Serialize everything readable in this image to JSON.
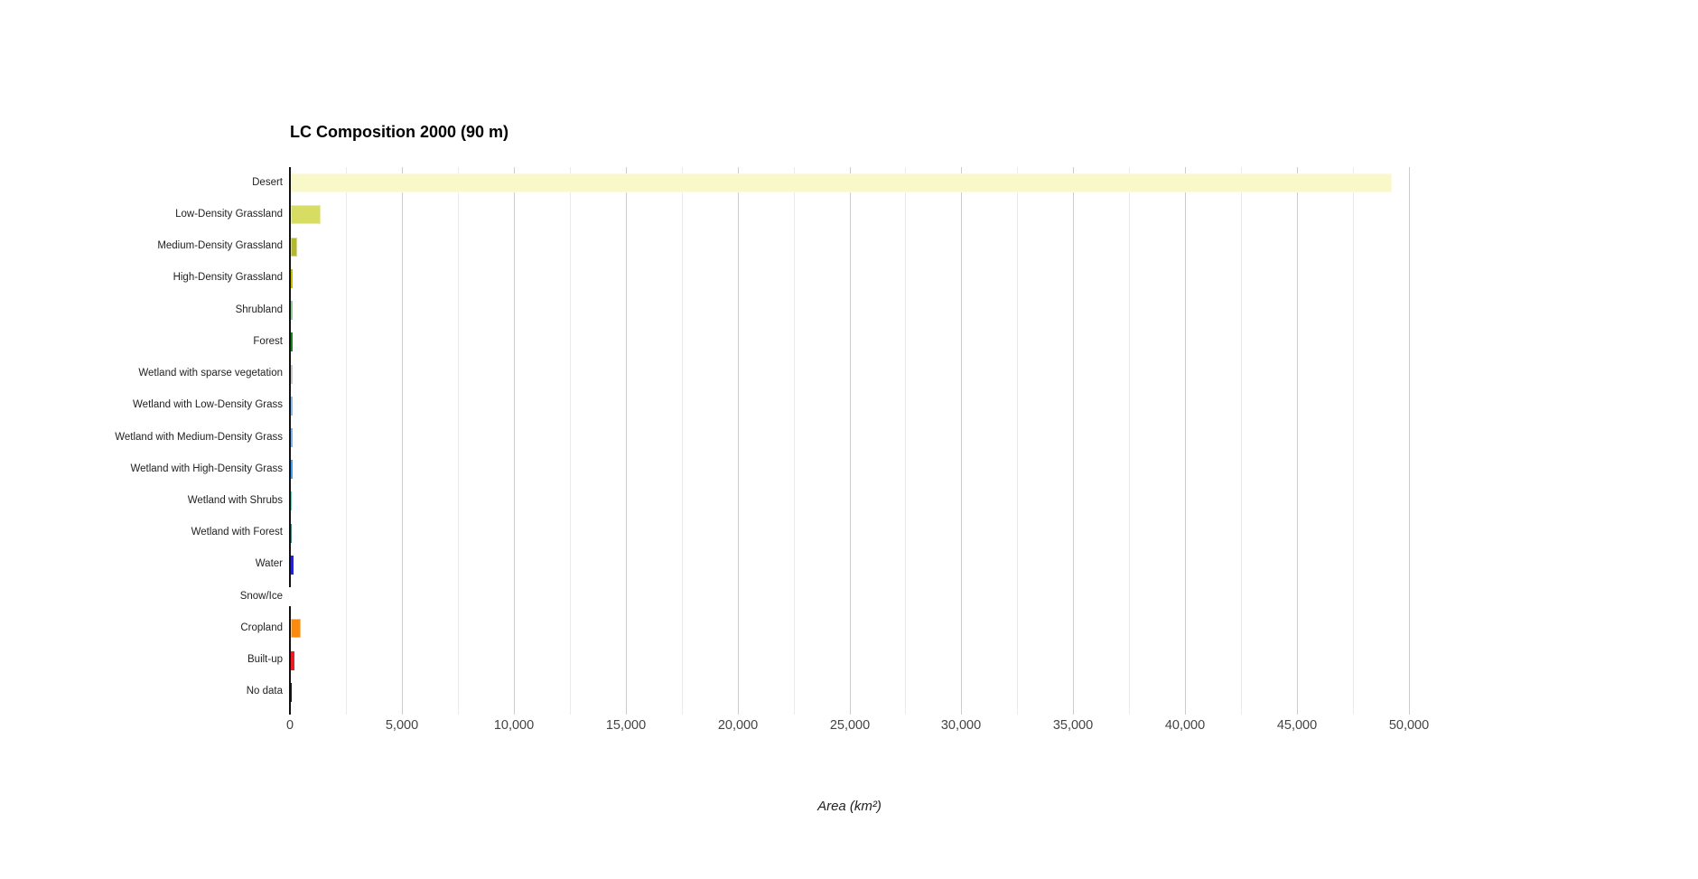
{
  "chart": {
    "title": "LC Composition 2000 (90 m)",
    "xlabel": "Area (km²)"
  },
  "chart_data": {
    "type": "bar",
    "orientation": "horizontal",
    "title": "LC Composition 2000 (90 m)",
    "xlabel": "Area (km²)",
    "xlim": [
      0,
      50000
    ],
    "grid": true,
    "major_tick_step": 5000,
    "minor_tick_step": 2500,
    "tick_labels": [
      "0",
      "5,000",
      "10,000",
      "15,000",
      "20,000",
      "25,000",
      "30,000",
      "35,000",
      "40,000",
      "45,000",
      "50,000"
    ],
    "categories": [
      "Desert",
      "Low-Density Grassland",
      "Medium-Density Grassland",
      "High-Density Grassland",
      "Shrubland",
      "Forest",
      "Wetland with sparse vegetation",
      "Wetland with Low-Density Grass",
      "Wetland with Medium-Density Grass",
      "Wetland with High-Density Grass",
      "Wetland with Shrubs",
      "Wetland with Forest",
      "Water",
      "Snow/Ice",
      "Cropland",
      "Built-up",
      "No data"
    ],
    "values": [
      49200,
      1330,
      270,
      95,
      80,
      85,
      95,
      65,
      65,
      75,
      60,
      60,
      120,
      15,
      430,
      160,
      40
    ],
    "colors": [
      "#f8f8c8",
      "#d7dd62",
      "#b2b92f",
      "#c4bd08",
      "#8ecb96",
      "#20801f",
      "#c9c9c9",
      "#8bbcec",
      "#7cb5ed",
      "#3f9ff4",
      "#71c6ab",
      "#46837d",
      "#2525cd",
      "#ffffff",
      "#fb8a0e",
      "#ea1c24",
      "#1a1a1a"
    ],
    "style": {
      "background": "#ffffff",
      "major_gridline_color": "#cccccc",
      "minor_gridline_color": "#ebebeb",
      "baseline_color": "#111111",
      "tick_label_color": "#444444",
      "category_label_color": "#222222",
      "title_color": "#000000"
    }
  }
}
